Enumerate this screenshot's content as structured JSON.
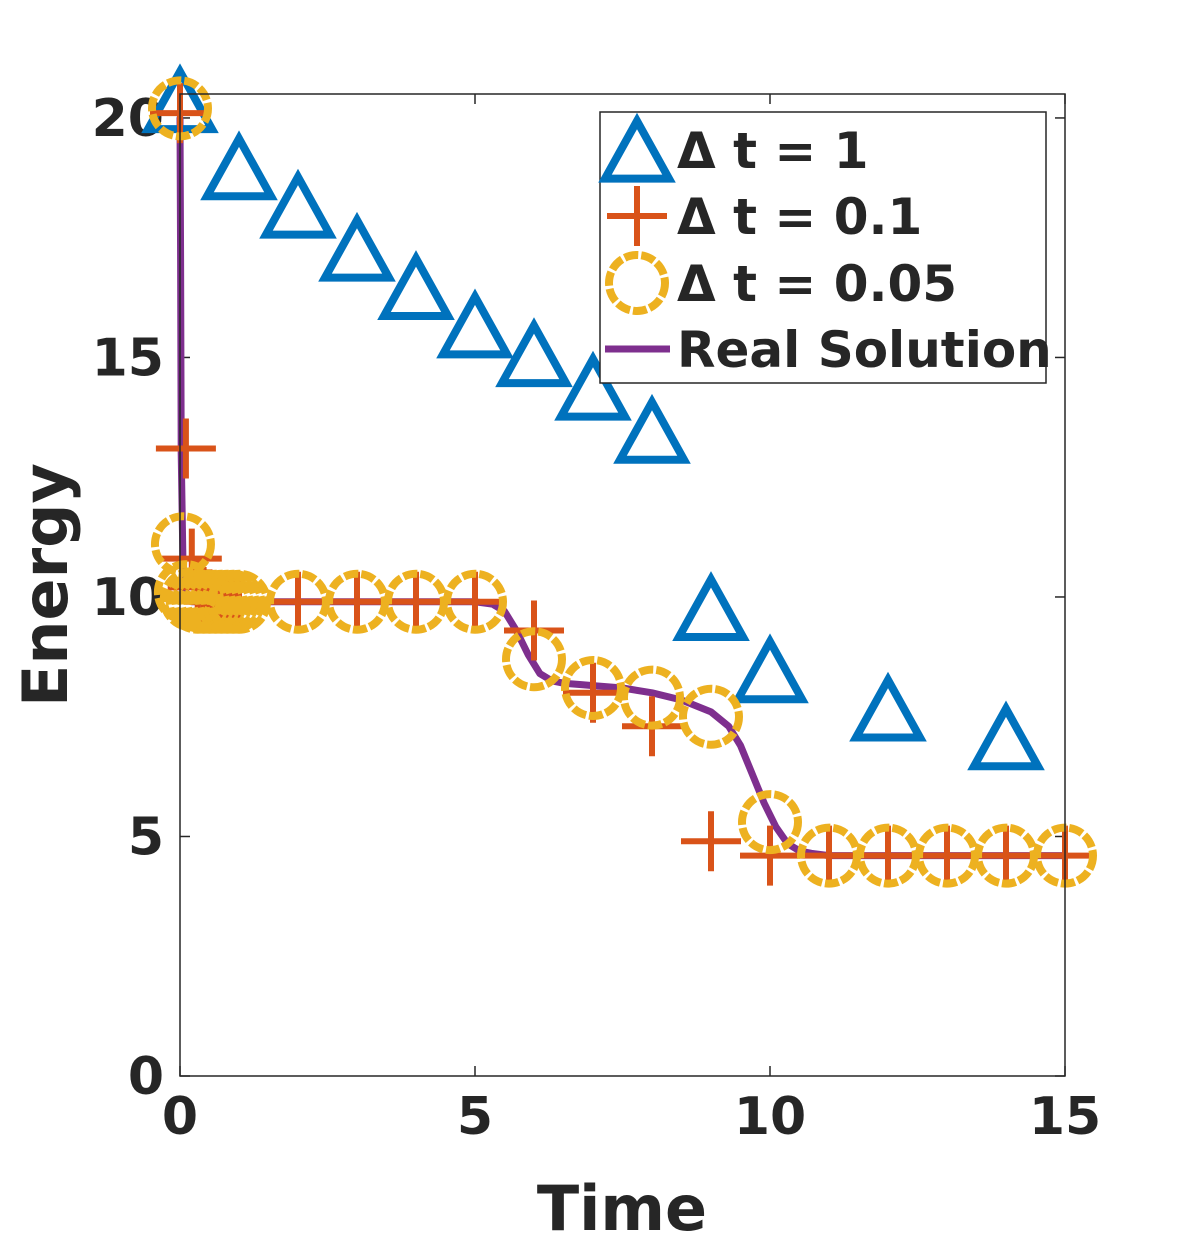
{
  "chart_data": {
    "type": "line",
    "title": "",
    "xlabel": "Time",
    "ylabel": "Energy",
    "xlim": [
      0,
      15
    ],
    "ylim": [
      0,
      20.5
    ],
    "xticks": [
      0,
      5,
      10,
      15
    ],
    "yticks": [
      0,
      5,
      10,
      15,
      20
    ],
    "grid": false,
    "legend_position": "top-right",
    "series": [
      {
        "name": "Δ t = 1",
        "marker": "triangle",
        "color": "#0072BD",
        "x": [
          0,
          1,
          2,
          3,
          4,
          5,
          6,
          7,
          8,
          9,
          10,
          12,
          14
        ],
        "y": [
          20.3,
          18.9,
          18.1,
          17.2,
          16.4,
          15.6,
          15.0,
          14.3,
          13.4,
          9.7,
          8.4,
          7.6,
          7.0
        ]
      },
      {
        "name": "Δ t = 0.1",
        "marker": "plus",
        "color": "#D95319",
        "x": [
          0,
          0.1,
          0.2,
          0.3,
          0.4,
          0.5,
          0.6,
          0.7,
          0.8,
          0.9,
          1,
          2,
          3,
          4,
          5,
          6,
          7,
          8,
          9,
          10,
          11,
          12,
          13,
          14,
          15
        ],
        "y": [
          20.1,
          13.1,
          10.8,
          10.2,
          10.0,
          9.95,
          9.9,
          9.9,
          9.9,
          9.9,
          9.9,
          9.9,
          9.9,
          9.9,
          9.9,
          9.3,
          8.0,
          7.3,
          4.9,
          4.6,
          4.6,
          4.6,
          4.6,
          4.6,
          4.6
        ]
      },
      {
        "name": "Δ t = 0.05",
        "marker": "circle",
        "color": "#EDB120",
        "x": [
          0,
          0.05,
          0.1,
          0.2,
          0.3,
          0.4,
          0.5,
          0.6,
          0.7,
          0.8,
          0.9,
          1,
          2,
          3,
          4,
          5,
          6,
          7,
          8,
          9,
          10,
          11,
          12,
          13,
          14,
          15
        ],
        "y": [
          20.2,
          11.1,
          10.1,
          9.95,
          9.9,
          9.9,
          9.9,
          9.9,
          9.9,
          9.9,
          9.9,
          9.9,
          9.9,
          9.9,
          9.9,
          9.9,
          8.7,
          8.1,
          7.9,
          7.5,
          5.3,
          4.6,
          4.6,
          4.6,
          4.6,
          4.6
        ]
      },
      {
        "name": "Real Solution",
        "marker": "none",
        "color": "#7E2F8E",
        "x": [
          0,
          0.01,
          0.02,
          0.05,
          0.1,
          0.2,
          0.5,
          1,
          2,
          3,
          4,
          5,
          5.3,
          5.5,
          5.7,
          5.9,
          6.1,
          6.3,
          6.5,
          6.8,
          7,
          7.5,
          8,
          8.5,
          9,
          9.3,
          9.5,
          9.7,
          9.9,
          10.1,
          10.3,
          10.5,
          10.7,
          11,
          12,
          13,
          14,
          15
        ],
        "y": [
          20.0,
          17.0,
          13.0,
          10.8,
          10.0,
          9.9,
          9.9,
          9.9,
          9.9,
          9.9,
          9.9,
          9.9,
          9.85,
          9.7,
          9.3,
          8.8,
          8.4,
          8.25,
          8.2,
          8.17,
          8.15,
          8.1,
          8.0,
          7.85,
          7.6,
          7.3,
          6.9,
          6.3,
          5.7,
          5.2,
          4.85,
          4.7,
          4.65,
          4.6,
          4.6,
          4.6,
          4.6,
          4.6
        ]
      }
    ]
  }
}
